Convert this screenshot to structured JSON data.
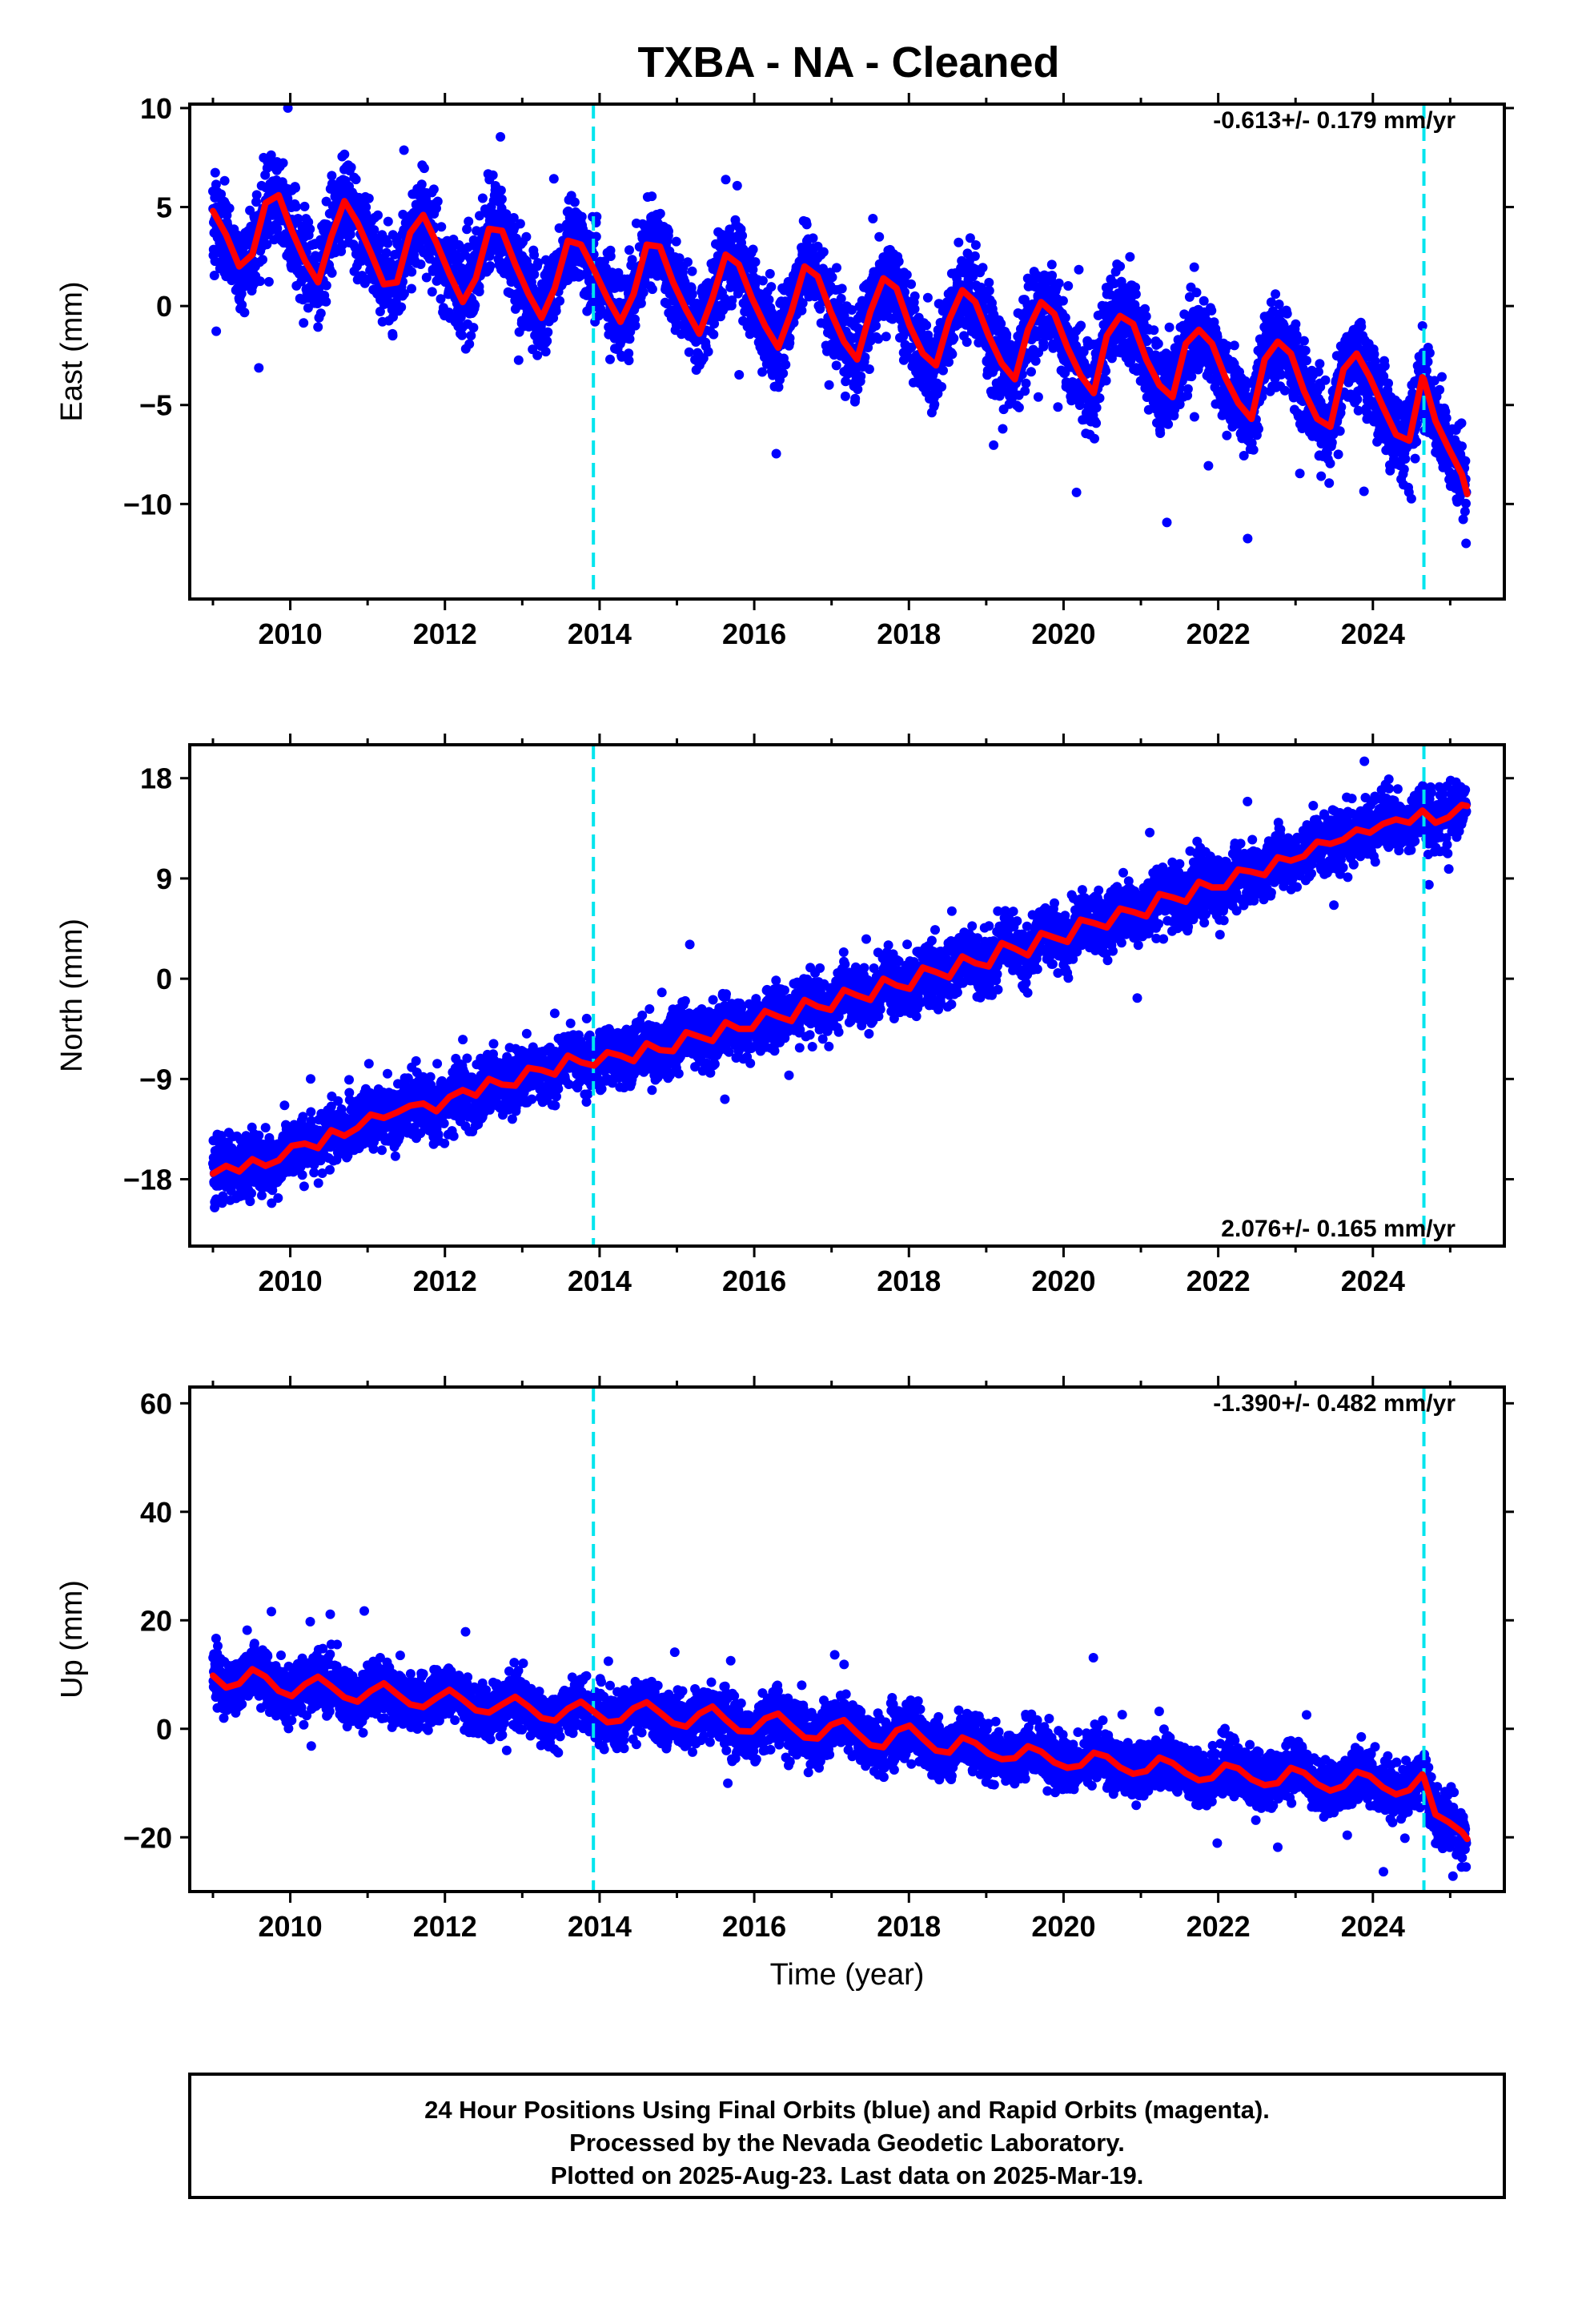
{
  "title": "TXBA  - NA - Cleaned",
  "xaxis_label": "Time (year)",
  "caption": [
    "24 Hour Positions Using Final Orbits (blue) and Rapid Orbits (magenta).",
    "Processed by the Nevada Geodetic Laboratory.",
    "Plotted on 2025-Aug-23. Last data on 2025-Mar-19."
  ],
  "colors": {
    "data": "#0000ff",
    "model": "#ff0000",
    "event": "#00e5ee",
    "frame": "#000000"
  },
  "chart_data": [
    {
      "type": "scatter",
      "component": "east",
      "ylabel": "East (mm)",
      "rate_label": "-0.613+/- 0.179 mm/yr",
      "rate_position": "top-right",
      "xlim": [
        2008.7,
        2025.7
      ],
      "ylim": [
        -14.8,
        10.2
      ],
      "yticks": [
        -10,
        -5,
        0,
        5,
        10
      ],
      "ytick_labels": [
        "−10",
        "−5",
        "0",
        "5",
        "10"
      ],
      "xticks": [
        2010,
        2012,
        2014,
        2016,
        2018,
        2020,
        2022,
        2024
      ],
      "xtick_labels": [
        "2010",
        "2012",
        "2014",
        "2016",
        "2018",
        "2020",
        "2022",
        "2024"
      ],
      "event_lines_x": [
        2013.92,
        2024.66
      ],
      "series": [
        {
          "kind": "model",
          "x": [
            2009.0,
            2009.17,
            2009.34,
            2009.51,
            2009.68,
            2009.85,
            2010.02,
            2010.19,
            2010.36,
            2010.53,
            2010.7,
            2010.87,
            2011.04,
            2011.21,
            2011.38,
            2011.55,
            2011.72,
            2011.89,
            2012.06,
            2012.23,
            2012.4,
            2012.57,
            2012.74,
            2012.91,
            2013.08,
            2013.25,
            2013.42,
            2013.59,
            2013.76,
            2013.93,
            2014.1,
            2014.27,
            2014.44,
            2014.61,
            2014.78,
            2014.95,
            2015.12,
            2015.29,
            2015.46,
            2015.63,
            2015.8,
            2015.97,
            2016.14,
            2016.31,
            2016.48,
            2016.65,
            2016.82,
            2016.99,
            2017.16,
            2017.33,
            2017.5,
            2017.67,
            2017.84,
            2018.01,
            2018.18,
            2018.35,
            2018.52,
            2018.69,
            2018.86,
            2019.03,
            2019.2,
            2019.37,
            2019.54,
            2019.71,
            2019.88,
            2020.05,
            2020.22,
            2020.39,
            2020.56,
            2020.73,
            2020.9,
            2021.07,
            2021.24,
            2021.41,
            2021.58,
            2021.75,
            2021.92,
            2022.09,
            2022.26,
            2022.43,
            2022.6,
            2022.77,
            2022.94,
            2023.11,
            2023.28,
            2023.45,
            2023.62,
            2023.79,
            2023.96,
            2024.13,
            2024.3,
            2024.47,
            2024.64,
            2024.66,
            2024.81,
            2024.98,
            2025.15,
            2025.22
          ],
          "y": [
            4.8,
            3.6,
            2.0,
            2.6,
            5.2,
            5.6,
            3.8,
            2.3,
            1.2,
            3.5,
            5.3,
            4.2,
            2.7,
            1.1,
            1.2,
            3.7,
            4.6,
            3.2,
            1.6,
            0.2,
            1.4,
            3.9,
            3.8,
            2.1,
            0.6,
            -0.6,
            0.9,
            3.3,
            3.1,
            1.8,
            0.4,
            -0.8,
            0.6,
            3.1,
            3.0,
            1.2,
            -0.2,
            -1.4,
            0.4,
            2.6,
            2.1,
            0.4,
            -1.0,
            -2.1,
            -0.3,
            2.0,
            1.5,
            -0.3,
            -1.8,
            -2.7,
            -0.3,
            1.4,
            0.9,
            -1.0,
            -2.4,
            -3.0,
            -0.7,
            0.8,
            0.2,
            -1.5,
            -2.9,
            -3.7,
            -1.2,
            0.2,
            -0.4,
            -2.1,
            -3.5,
            -4.4,
            -1.5,
            -0.5,
            -0.9,
            -2.7,
            -4.0,
            -4.6,
            -1.9,
            -1.2,
            -1.9,
            -3.6,
            -4.9,
            -5.7,
            -2.7,
            -1.8,
            -2.4,
            -4.3,
            -5.7,
            -6.1,
            -3.2,
            -2.4,
            -3.6,
            -5.1,
            -6.5,
            -6.8,
            -3.6,
            -3.7,
            -5.8,
            -7.2,
            -8.5,
            -9.5
          ]
        }
      ]
    },
    {
      "type": "scatter",
      "component": "north",
      "ylabel": "North (mm)",
      "rate_label": "2.076+/- 0.165 mm/yr",
      "rate_position": "bottom-right",
      "xlim": [
        2008.7,
        2025.7
      ],
      "ylim": [
        -24.0,
        21.0
      ],
      "yticks": [
        -18,
        -9,
        0,
        9,
        18
      ],
      "ytick_labels": [
        "−18",
        "−9",
        "0",
        "9",
        "18"
      ],
      "xticks": [
        2010,
        2012,
        2014,
        2016,
        2018,
        2020,
        2022,
        2024
      ],
      "xtick_labels": [
        "2010",
        "2012",
        "2014",
        "2016",
        "2018",
        "2020",
        "2022",
        "2024"
      ],
      "event_lines_x": [
        2013.92,
        2024.66
      ],
      "series": [
        {
          "kind": "model",
          "x": [
            2009.0,
            2009.17,
            2009.34,
            2009.51,
            2009.68,
            2009.85,
            2010.02,
            2010.19,
            2010.36,
            2010.53,
            2010.7,
            2010.87,
            2011.04,
            2011.21,
            2011.38,
            2011.55,
            2011.72,
            2011.89,
            2012.06,
            2012.23,
            2012.4,
            2012.57,
            2012.74,
            2012.91,
            2013.08,
            2013.25,
            2013.42,
            2013.59,
            2013.76,
            2013.93,
            2014.1,
            2014.27,
            2014.44,
            2014.61,
            2014.78,
            2014.95,
            2015.12,
            2015.29,
            2015.46,
            2015.63,
            2015.8,
            2015.97,
            2016.14,
            2016.31,
            2016.48,
            2016.65,
            2016.82,
            2016.99,
            2017.16,
            2017.33,
            2017.5,
            2017.67,
            2017.84,
            2018.01,
            2018.18,
            2018.35,
            2018.52,
            2018.69,
            2018.86,
            2019.03,
            2019.2,
            2019.37,
            2019.54,
            2019.71,
            2019.88,
            2020.05,
            2020.22,
            2020.39,
            2020.56,
            2020.73,
            2020.9,
            2021.07,
            2021.24,
            2021.41,
            2021.58,
            2021.75,
            2021.92,
            2022.09,
            2022.26,
            2022.43,
            2022.6,
            2022.77,
            2022.94,
            2023.11,
            2023.28,
            2023.45,
            2023.62,
            2023.79,
            2023.96,
            2024.13,
            2024.3,
            2024.47,
            2024.64,
            2024.81,
            2024.98,
            2025.15,
            2025.22
          ],
          "y": [
            -17.5,
            -16.8,
            -17.3,
            -16.2,
            -16.8,
            -16.3,
            -15.0,
            -14.8,
            -15.2,
            -13.6,
            -14.1,
            -13.4,
            -12.2,
            -12.5,
            -12.0,
            -11.4,
            -11.2,
            -11.9,
            -10.6,
            -10.0,
            -10.5,
            -9.0,
            -9.5,
            -9.6,
            -8.0,
            -8.2,
            -8.6,
            -6.9,
            -7.5,
            -7.8,
            -6.6,
            -6.9,
            -7.4,
            -5.8,
            -6.4,
            -6.5,
            -4.8,
            -5.2,
            -5.6,
            -3.9,
            -4.5,
            -4.5,
            -2.9,
            -3.4,
            -3.8,
            -1.9,
            -2.5,
            -2.8,
            -1.0,
            -1.5,
            -1.9,
            0.0,
            -0.6,
            -0.9,
            1.0,
            0.6,
            0.1,
            2.0,
            1.4,
            1.1,
            3.2,
            2.7,
            2.1,
            4.1,
            3.7,
            3.3,
            5.3,
            5.0,
            4.6,
            6.3,
            6.0,
            5.6,
            7.6,
            7.3,
            6.9,
            8.7,
            8.2,
            8.2,
            9.8,
            9.6,
            9.3,
            10.9,
            10.6,
            11.0,
            12.3,
            12.1,
            12.5,
            13.4,
            13.1,
            13.9,
            14.3,
            14.0,
            15.1,
            14.0,
            14.5,
            15.6,
            15.5
          ]
        }
      ]
    },
    {
      "type": "scatter",
      "component": "up",
      "ylabel": "Up (mm)",
      "rate_label": "-1.390+/- 0.482 mm/yr",
      "rate_position": "top-right",
      "xlim": [
        2008.7,
        2025.7
      ],
      "ylim": [
        -30.0,
        63.0
      ],
      "yticks": [
        -20,
        0,
        20,
        40,
        60
      ],
      "ytick_labels": [
        "−20",
        "0",
        "20",
        "40",
        "60"
      ],
      "xticks": [
        2010,
        2012,
        2014,
        2016,
        2018,
        2020,
        2022,
        2024
      ],
      "xtick_labels": [
        "2010",
        "2012",
        "2014",
        "2016",
        "2018",
        "2020",
        "2022",
        "2024"
      ],
      "event_lines_x": [
        2013.92,
        2024.66
      ],
      "series": [
        {
          "kind": "model",
          "x": [
            2009.0,
            2009.17,
            2009.34,
            2009.51,
            2009.68,
            2009.85,
            2010.02,
            2010.19,
            2010.36,
            2010.53,
            2010.7,
            2010.87,
            2011.04,
            2011.21,
            2011.38,
            2011.55,
            2011.72,
            2011.89,
            2012.06,
            2012.23,
            2012.4,
            2012.57,
            2012.74,
            2012.91,
            2013.08,
            2013.25,
            2013.42,
            2013.59,
            2013.76,
            2013.93,
            2014.1,
            2014.27,
            2014.44,
            2014.61,
            2014.78,
            2014.95,
            2015.12,
            2015.29,
            2015.46,
            2015.63,
            2015.8,
            2015.97,
            2016.14,
            2016.31,
            2016.48,
            2016.65,
            2016.82,
            2016.99,
            2017.16,
            2017.33,
            2017.5,
            2017.67,
            2017.84,
            2018.01,
            2018.18,
            2018.35,
            2018.52,
            2018.69,
            2018.86,
            2019.03,
            2019.2,
            2019.37,
            2019.54,
            2019.71,
            2019.88,
            2020.05,
            2020.22,
            2020.39,
            2020.56,
            2020.73,
            2020.9,
            2021.07,
            2021.24,
            2021.41,
            2021.58,
            2021.75,
            2021.92,
            2022.09,
            2022.26,
            2022.43,
            2022.6,
            2022.77,
            2022.94,
            2023.11,
            2023.28,
            2023.45,
            2023.62,
            2023.79,
            2023.96,
            2024.13,
            2024.3,
            2024.47,
            2024.64,
            2024.66,
            2024.81,
            2024.98,
            2025.15,
            2025.22
          ],
          "y": [
            9.8,
            7.6,
            8.3,
            11.0,
            9.6,
            7.0,
            6.0,
            8.2,
            9.6,
            7.8,
            5.8,
            5.0,
            7.0,
            8.4,
            6.4,
            4.5,
            4.0,
            5.7,
            7.2,
            5.4,
            3.4,
            3.0,
            4.5,
            5.9,
            4.1,
            2.0,
            1.5,
            3.7,
            5.0,
            3.1,
            1.2,
            1.5,
            3.8,
            4.9,
            3.0,
            1.0,
            0.4,
            2.8,
            4.1,
            1.7,
            -0.4,
            -0.5,
            1.9,
            2.8,
            0.5,
            -1.6,
            -1.8,
            0.7,
            1.6,
            -0.8,
            -3.0,
            -3.4,
            -0.3,
            0.6,
            -1.8,
            -4.0,
            -4.4,
            -1.6,
            -2.6,
            -4.6,
            -5.6,
            -5.4,
            -3.2,
            -4.2,
            -6.2,
            -7.2,
            -6.8,
            -4.4,
            -5.1,
            -7.1,
            -8.3,
            -7.8,
            -5.3,
            -6.3,
            -8.2,
            -9.5,
            -9.1,
            -6.6,
            -7.3,
            -9.3,
            -10.4,
            -10.0,
            -7.2,
            -8.1,
            -10.2,
            -11.4,
            -10.6,
            -7.9,
            -8.7,
            -10.8,
            -12.1,
            -11.3,
            -8.4,
            -9.0,
            -15.8,
            -17.2,
            -19.0,
            -20.3
          ]
        }
      ]
    }
  ]
}
